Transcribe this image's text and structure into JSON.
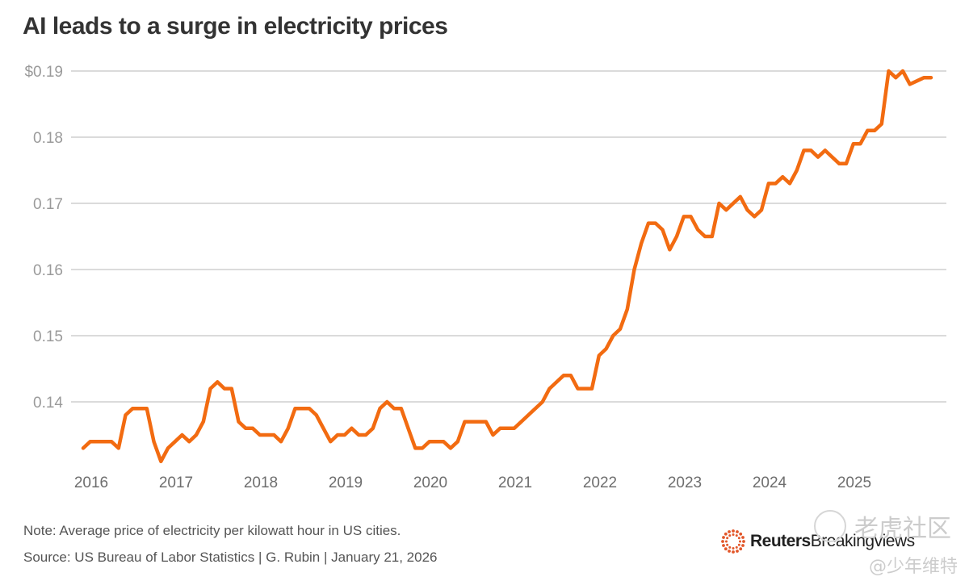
{
  "title": "AI leads to a surge in electricity prices",
  "note": "Note: Average price of electricity per kilowatt hour in US cities.",
  "source": "Source: US Bureau of Labor Statistics | G. Rubin | January 21, 2026",
  "brand": {
    "bold": "Reuters",
    "regular": "Breakingviews"
  },
  "watermark": {
    "top": "老虎社区",
    "bottom": "@少年维特"
  },
  "colors": {
    "line": "#f26b11",
    "grid": "#cfcfcf",
    "title": "#333333",
    "logo_dots": "#e2572a"
  },
  "chart_data": {
    "type": "line",
    "title": "AI leads to a surge in electricity prices",
    "xlabel": "",
    "ylabel": "",
    "ylim": [
      0.13,
      0.19
    ],
    "grid": true,
    "legend": "none",
    "y_ticks": [
      {
        "value": 0.19,
        "label": "$0.19"
      },
      {
        "value": 0.18,
        "label": "0.18"
      },
      {
        "value": 0.17,
        "label": "0.17"
      },
      {
        "value": 0.16,
        "label": "0.16"
      },
      {
        "value": 0.15,
        "label": "0.15"
      },
      {
        "value": 0.14,
        "label": "0.14"
      }
    ],
    "x_ticks": [
      "2016",
      "2017",
      "2018",
      "2019",
      "2020",
      "2021",
      "2022",
      "2023",
      "2024",
      "2025"
    ],
    "x_start": "2016-01",
    "x_frequency": "monthly",
    "series": [
      {
        "name": "Average price of electricity per kWh, US cities",
        "values": [
          0.133,
          0.134,
          0.134,
          0.134,
          0.134,
          0.133,
          0.138,
          0.139,
          0.139,
          0.139,
          0.134,
          0.131,
          0.133,
          0.134,
          0.135,
          0.134,
          0.135,
          0.137,
          0.142,
          0.143,
          0.142,
          0.142,
          0.137,
          0.136,
          0.136,
          0.135,
          0.135,
          0.135,
          0.134,
          0.136,
          0.139,
          0.139,
          0.139,
          0.138,
          0.136,
          0.134,
          0.135,
          0.135,
          0.136,
          0.135,
          0.135,
          0.136,
          0.139,
          0.14,
          0.139,
          0.139,
          0.136,
          0.133,
          0.133,
          0.134,
          0.134,
          0.134,
          0.133,
          0.134,
          0.137,
          0.137,
          0.137,
          0.137,
          0.135,
          0.136,
          0.136,
          0.136,
          0.137,
          0.138,
          0.139,
          0.14,
          0.142,
          0.143,
          0.144,
          0.144,
          0.142,
          0.142,
          0.142,
          0.147,
          0.148,
          0.15,
          0.151,
          0.154,
          0.16,
          0.164,
          0.167,
          0.167,
          0.166,
          0.163,
          0.165,
          0.168,
          0.168,
          0.166,
          0.165,
          0.165,
          0.17,
          0.169,
          0.17,
          0.171,
          0.169,
          0.168,
          0.169,
          0.173,
          0.173,
          0.174,
          0.173,
          0.175,
          0.178,
          0.178,
          0.177,
          0.178,
          0.177,
          0.176,
          0.176,
          0.179,
          0.179,
          0.181,
          0.181,
          0.182,
          0.19,
          0.189,
          0.19,
          0.188,
          0.1885,
          0.189,
          0.189
        ]
      }
    ]
  }
}
